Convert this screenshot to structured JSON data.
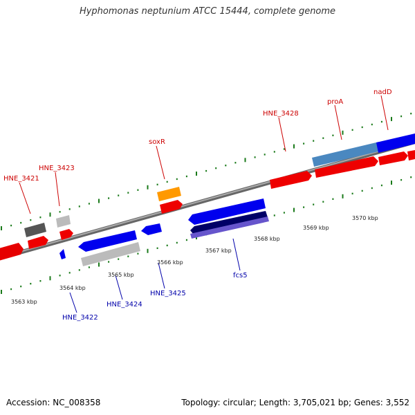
{
  "title": "Hyphomonas neptunium ATCC 15444, complete genome",
  "footer": {
    "accession": "Accession: NC_008358",
    "summary": "Topology: circular; Length: 3,705,021 bp; Genes: 3,552"
  },
  "colors": {
    "forward_label": "#cc0000",
    "reverse_label": "#0000aa",
    "tick": "#1a7a1a",
    "gene_red": "#ff0000",
    "gene_blue": "#0000ff",
    "gene_navy": "#000066",
    "gene_lightblue": "#4477bb",
    "gene_purple": "#6655cc",
    "gene_orange": "#ff9900",
    "gene_gray": "#666666",
    "gene_lightgray": "#bbbbbb",
    "backbone": "#888888"
  },
  "kbp_labels": [
    "3563 kbp",
    "3564 kbp",
    "3565 kbp",
    "3566 kbp",
    "3567 kbp",
    "3568 kbp",
    "3569 kbp",
    "3570 kbp"
  ],
  "gene_labels": {
    "forward": [
      "HNE_3421",
      "HNE_3423",
      "soxR",
      "HNE_3428",
      "proA",
      "nadD"
    ],
    "reverse": [
      "HNE_3422",
      "HNE_3424",
      "HNE_3425",
      "fcs5"
    ]
  }
}
